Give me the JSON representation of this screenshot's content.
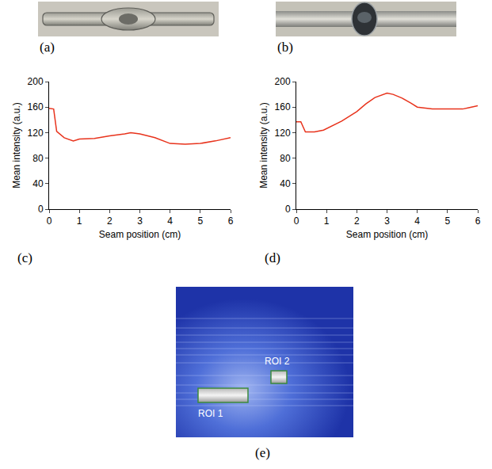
{
  "chart_data": [
    {
      "type": "line",
      "panel": "(c)",
      "x_label": "Seam position (cm)",
      "y_label": "Mean intensity (a.u.)",
      "x": [
        0,
        0.15,
        0.25,
        0.5,
        0.8,
        1.0,
        1.5,
        2.0,
        2.5,
        2.7,
        3.0,
        3.5,
        4.0,
        4.5,
        5.0,
        5.5,
        6.0
      ],
      "values": [
        158,
        157,
        122,
        112,
        107,
        110,
        111,
        115,
        118,
        120,
        118,
        112,
        103,
        102,
        103,
        107,
        112
      ],
      "color": "#e8331c",
      "xlim": [
        0,
        6
      ],
      "xticks": [
        0,
        1,
        2,
        3,
        4,
        5,
        6
      ],
      "ylim": [
        0,
        200
      ],
      "yticks": [
        0,
        40,
        80,
        120,
        160,
        200
      ],
      "grid": false
    },
    {
      "type": "line",
      "panel": "(d)",
      "x_label": "Seam position (cm)",
      "y_label": "Mean intensity (a.u.)",
      "x": [
        0,
        0.15,
        0.3,
        0.6,
        0.9,
        1.2,
        1.5,
        2.0,
        2.3,
        2.6,
        3.0,
        3.2,
        3.5,
        3.8,
        4.0,
        4.5,
        5.0,
        5.5,
        5.7,
        6.0
      ],
      "values": [
        137,
        137,
        121,
        121,
        124,
        131,
        138,
        153,
        165,
        175,
        182,
        180,
        174,
        166,
        160,
        157,
        157,
        157,
        159,
        162
      ],
      "color": "#e8331c",
      "xlim": [
        0,
        6
      ],
      "xticks": [
        0,
        1,
        2,
        3,
        4,
        5,
        6
      ],
      "ylim": [
        0,
        200
      ],
      "yticks": [
        0,
        40,
        80,
        120,
        160,
        200
      ],
      "grid": false
    }
  ],
  "images": [
    {
      "panel": "(a)"
    },
    {
      "panel": "(b)"
    },
    {
      "panel": "(e)",
      "annotations": [
        "ROI 1",
        "ROI 2"
      ]
    }
  ]
}
